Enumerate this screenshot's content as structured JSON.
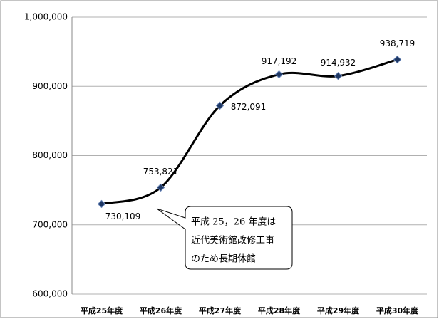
{
  "chart_data": {
    "type": "line",
    "categories": [
      "平成25年度",
      "平成26年度",
      "平成27年度",
      "平成28年度",
      "平成29年度",
      "平成30年度"
    ],
    "values": [
      730109,
      753821,
      872091,
      917192,
      914932,
      938719
    ],
    "value_labels": [
      "730,109",
      "753,821",
      "872,091",
      "917,192",
      "914,932",
      "938,719"
    ],
    "color": "#000000",
    "marker_color": "#1f3864",
    "ylim": [
      600000,
      1000000
    ],
    "yticks": [
      {
        "value": 600000,
        "label": "600,000"
      },
      {
        "value": 700000,
        "label": "700,000"
      },
      {
        "value": 800000,
        "label": "800,000"
      },
      {
        "value": 900000,
        "label": "900,000"
      },
      {
        "value": 1000000,
        "label": "1,000,000"
      }
    ],
    "grid": true,
    "annotation": [
      "平成 25，26 年度は",
      "近代美術館改修工事",
      "のため長期休館"
    ]
  }
}
